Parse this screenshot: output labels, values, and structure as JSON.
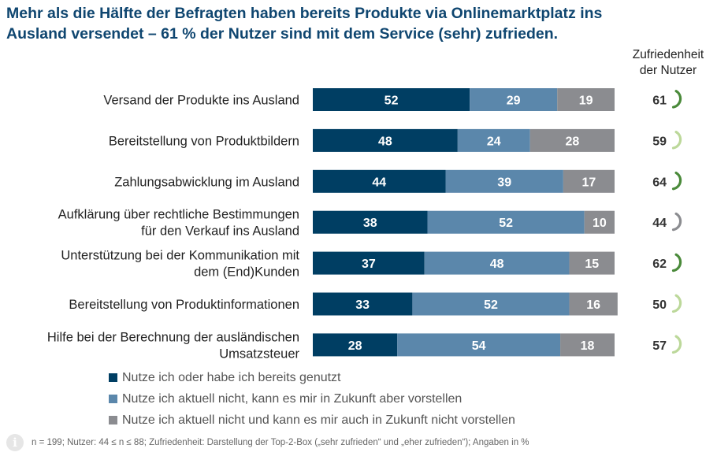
{
  "header": {
    "title_line1": "Mehr als die Hälfte der Befragten haben bereits Produkte via Onlinemarktplatz ins",
    "title_line2": "Ausland versendet – 61 % der Nutzer sind mit dem Service (sehr) zufrieden.",
    "sat_header_line1": "Zufriedenheit",
    "sat_header_line2": "der Nutzer"
  },
  "colors": {
    "used": "#003e63",
    "imaginable": "#5b87ab",
    "not_imaginable": "#8b8c90",
    "title": "#0f4670",
    "gauge_high": "#4a8a3a",
    "gauge_mid": "#bcd89a",
    "gauge_low": "#8b8c90"
  },
  "legend": {
    "items": [
      {
        "label": "Nutze ich oder habe ich bereits genutzt",
        "color": "#003e63"
      },
      {
        "label": "Nutze ich aktuell nicht, kann es mir in Zukunft aber vorstellen",
        "color": "#5b87ab"
      },
      {
        "label": "Nutze ich aktuell nicht und kann es mir auch in Zukunft nicht vorstellen",
        "color": "#8b8c90"
      }
    ]
  },
  "footnote": {
    "icon": "info-icon",
    "text": "n = 199; Nutzer: 44 ≤ n ≤ 88; Zufriedenheit: Darstellung der Top-2-Box („sehr zufrieden“ und „eher zufrieden“); Angaben in %"
  },
  "chart_data": {
    "type": "bar",
    "orientation": "horizontal",
    "stacked": true,
    "categories": [
      [
        "Versand der Produkte ins Ausland"
      ],
      [
        "Bereitstellung von Produktbildern"
      ],
      [
        "Zahlungsabwicklung im Ausland"
      ],
      [
        "Aufklärung über rechtliche Bestimmungen",
        "für den Verkauf ins Ausland"
      ],
      [
        "Unterstützung bei der Kommunikation mit",
        "dem (End)Kunden"
      ],
      [
        "Bereitstellung von Produktinformationen"
      ],
      [
        "Hilfe bei der Berechnung der ausländischen",
        "Umsatzsteuer"
      ]
    ],
    "series": [
      {
        "name": "Nutze ich oder habe ich bereits genutzt",
        "color": "#003e63",
        "values": [
          52,
          48,
          44,
          38,
          37,
          33,
          28
        ]
      },
      {
        "name": "Nutze ich aktuell nicht, kann es mir in Zukunft aber vorstellen",
        "color": "#5b87ab",
        "values": [
          29,
          24,
          39,
          52,
          48,
          52,
          54
        ]
      },
      {
        "name": "Nutze ich aktuell nicht und kann es mir auch in Zukunft nicht vorstellen",
        "color": "#8b8c90",
        "values": [
          19,
          28,
          17,
          10,
          15,
          16,
          18
        ]
      }
    ],
    "satisfaction": {
      "values": [
        61,
        59,
        64,
        44,
        62,
        50,
        57
      ],
      "gauge_levels": [
        "high",
        "mid",
        "high",
        "low",
        "high",
        "mid",
        "mid"
      ]
    },
    "xlim": [
      0,
      100
    ],
    "grid": false,
    "legend_position": "bottom"
  }
}
